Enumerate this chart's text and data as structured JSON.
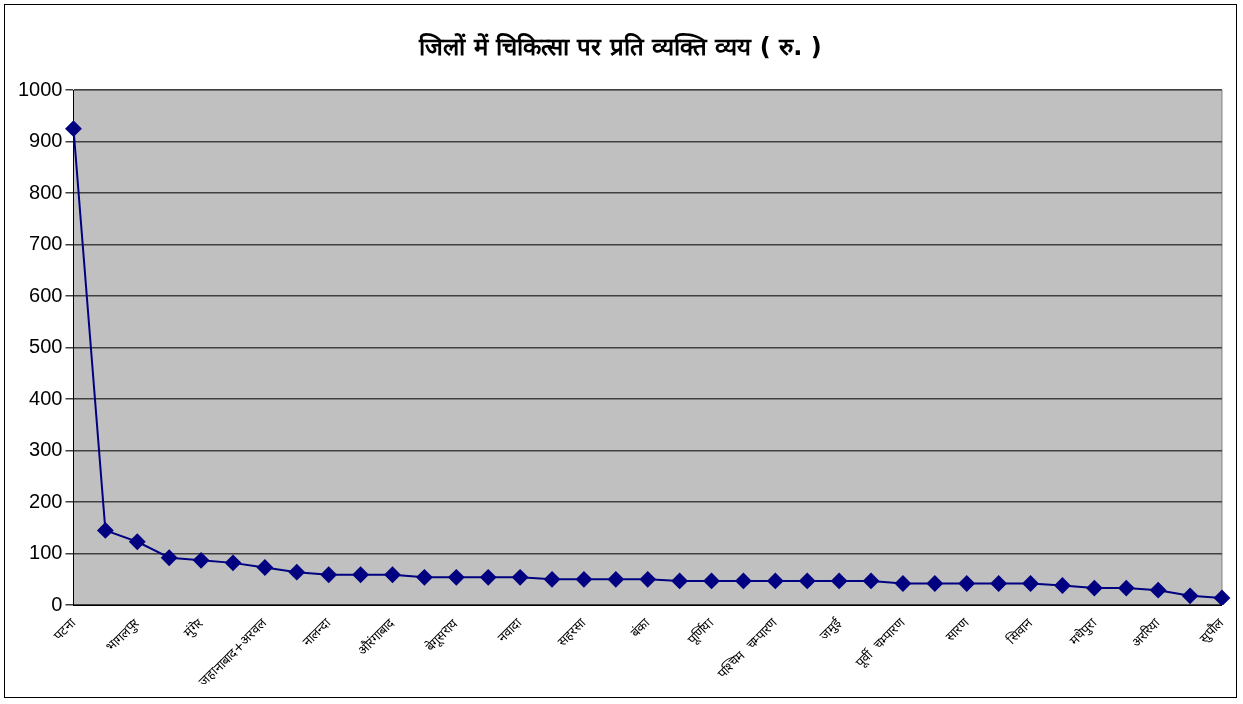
{
  "chart_data": {
    "type": "line",
    "title": "जिलों में चिकित्सा पर प्रति व्यक्ति व्यय ( रु. )",
    "categories": [
      "पटना",
      null,
      "भागलपुर",
      null,
      "मुंगेर",
      null,
      "जहानाबाद+अरवल",
      null,
      "नालन्दा",
      null,
      "औरंगाबाद",
      null,
      "बेगूसराय",
      null,
      "नवादा",
      null,
      "सहरसा",
      null,
      "बंका",
      null,
      "पूर्णिया",
      null,
      "पश्चिम  चम्पारण",
      null,
      "जमुई",
      null,
      "पूर्वी  चम्पारण",
      null,
      "सारण",
      null,
      "सिवान",
      null,
      "मधेपुरा",
      null,
      "अररिया",
      null,
      "सुपौल"
    ],
    "series": [
      {
        "color": "#000080",
        "values": [
          925,
          145,
          123,
          92,
          87,
          82,
          73,
          64,
          59,
          59,
          59,
          54,
          54,
          54,
          54,
          50,
          50,
          50,
          50,
          47,
          47,
          47,
          47,
          47,
          47,
          47,
          42,
          42,
          42,
          42,
          42,
          38,
          33,
          33,
          29,
          18,
          14
        ]
      }
    ],
    "ylim": [
      0,
      1000
    ],
    "yticks": [
      0,
      100,
      200,
      300,
      400,
      500,
      600,
      700,
      800,
      900,
      1000
    ],
    "grid": "y",
    "marker": "diamond",
    "legend": false
  }
}
